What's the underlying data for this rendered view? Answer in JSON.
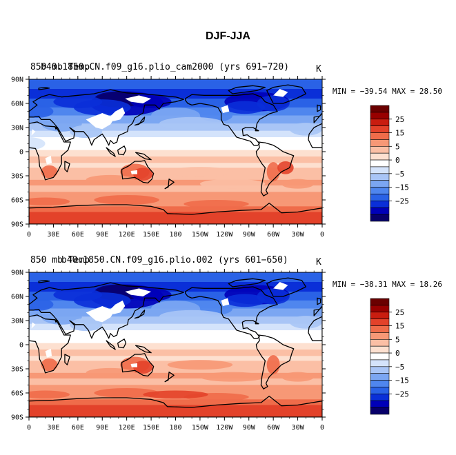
{
  "page": {
    "title": "DJF-JJA"
  },
  "colors": {
    "levels": [
      "#08006a",
      "#0000b8",
      "#0a2fd8",
      "#2a62e6",
      "#4f86ee",
      "#7ba6f2",
      "#a9c5f6",
      "#d4e3fb",
      "#ffffff",
      "#fde0d0",
      "#fbbfa5",
      "#f79876",
      "#ef6c4a",
      "#e3422a",
      "#c91d10",
      "#980000",
      "#6a0000"
    ],
    "land_ice": "#ffffff",
    "coast": "#000000"
  },
  "chart_data": [
    {
      "type": "heatmap",
      "panel": "top",
      "title_left": "850 mb Temp",
      "title_center": "b40.1850.CN.f09_g16.plio_cam2000 (yrs 691−720)",
      "units": "K",
      "stats": "MIN = −39.54  MAX =  28.50",
      "min": -39.54,
      "max": 28.5,
      "xticks": [
        "0",
        "30E",
        "60E",
        "90E",
        "120E",
        "150E",
        "180",
        "150W",
        "120W",
        "90W",
        "60W",
        "30W",
        "0"
      ],
      "yticks": [
        "90N",
        "60N",
        "30N",
        "0",
        "30S",
        "60S",
        "90S"
      ],
      "colorbar_labels": [
        "25",
        "15",
        "5",
        "0",
        "−5",
        "−15",
        "−25"
      ]
    },
    {
      "type": "heatmap",
      "panel": "bottom",
      "title_left": "850 mb Temp",
      "title_center": "b40.1850.CN.f09_g16.plio.002 (yrs 601−650)",
      "units": "K",
      "stats": "MIN = −38.31  MAX =  18.26",
      "min": -38.31,
      "max": 18.26,
      "xticks": [
        "0",
        "30E",
        "60E",
        "90E",
        "120E",
        "150E",
        "180",
        "150W",
        "120W",
        "90W",
        "60W",
        "30W",
        "0"
      ],
      "yticks": [
        "90N",
        "60N",
        "30N",
        "0",
        "30S",
        "60S",
        "90S"
      ],
      "colorbar_labels": [
        "25",
        "15",
        "5",
        "0",
        "−5",
        "−15",
        "−25"
      ]
    }
  ]
}
